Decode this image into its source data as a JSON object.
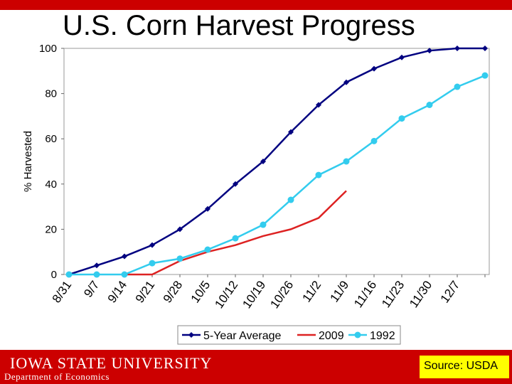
{
  "title": "U.S. Corn Harvest Progress",
  "footer": {
    "university": "IOWA STATE UNIVERSITY",
    "department": "Department of Economics"
  },
  "source": "Source: USDA",
  "colors": {
    "brand_red": "#cc0000",
    "source_yellow": "#ffff00"
  },
  "chart_data": {
    "type": "line",
    "ylabel": "% Harvested",
    "xlabel": "",
    "ylim": [
      0,
      100
    ],
    "yticks": [
      0,
      20,
      40,
      60,
      80,
      100
    ],
    "categories": [
      "8/31",
      "9/7",
      "9/14",
      "9/21",
      "9/28",
      "10/5",
      "10/12",
      "10/19",
      "10/26",
      "11/2",
      "11/9",
      "11/16",
      "11/23",
      "11/30",
      "12/7",
      ""
    ],
    "grid": false,
    "legend_position": "bottom",
    "series": [
      {
        "name": "5-Year Average",
        "color": "#000080",
        "marker": "diamond",
        "values": [
          0,
          4,
          8,
          13,
          20,
          29,
          40,
          50,
          63,
          75,
          85,
          91,
          96,
          99,
          100,
          100
        ]
      },
      {
        "name": "2009",
        "color": "#dd2222",
        "marker": "none",
        "values": [
          null,
          null,
          0,
          0,
          6,
          10,
          13,
          17,
          20,
          25,
          37,
          null,
          null,
          null,
          null,
          null
        ]
      },
      {
        "name": "1992",
        "color": "#33ccee",
        "marker": "circle",
        "values": [
          0,
          0,
          0,
          5,
          7,
          11,
          16,
          22,
          33,
          44,
          50,
          59,
          69,
          75,
          83,
          88
        ]
      }
    ]
  }
}
